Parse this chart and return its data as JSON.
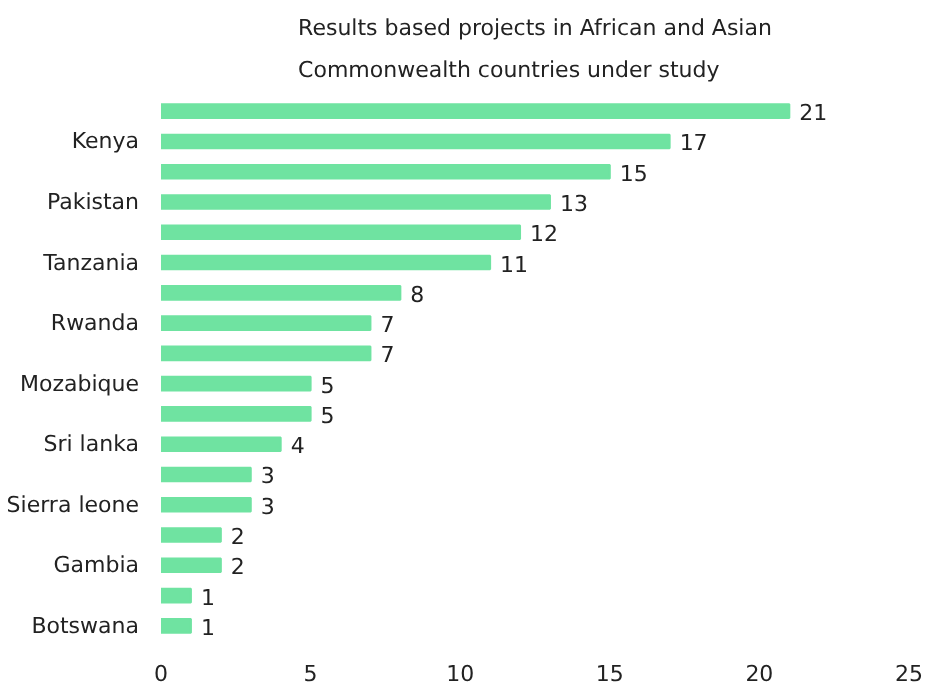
{
  "chart_data": {
    "type": "bar",
    "orientation": "horizontal",
    "title": "Results based projects in African and Asian\nCommonwealth countries under study",
    "categories": [
      null,
      "Kenya",
      null,
      "Pakistan",
      null,
      "Tanzania",
      null,
      "Rwanda",
      null,
      "Mozabique",
      null,
      "Sri lanka",
      null,
      "Sierra leone",
      null,
      "Gambia",
      null,
      "Botswana"
    ],
    "values": [
      21,
      17,
      15,
      13,
      12,
      11,
      8,
      7,
      7,
      5,
      5,
      4,
      3,
      3,
      2,
      2,
      1,
      1
    ],
    "color": "#6fe3a1",
    "data_labels": true,
    "grid": false,
    "xlim": [
      0,
      25
    ],
    "xticks": [
      0,
      5,
      10,
      15,
      20,
      25
    ]
  }
}
